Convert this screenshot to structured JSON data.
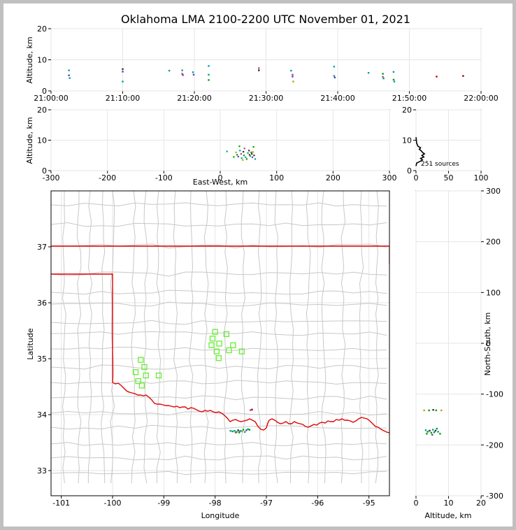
{
  "chart_data": {
    "type": "scatter",
    "title": "Oklahoma LMA 2100-2200 UTC November 01, 2021",
    "panels": {
      "time_altitude": {
        "ylabel": "Altitude, km",
        "ylim": [
          0,
          20
        ],
        "yticks": [
          "0",
          "10",
          "20"
        ],
        "xlim_minutes": [
          0,
          60
        ],
        "xticks": [
          "21:00:00",
          "21:10:00",
          "21:20:00",
          "21:30:00",
          "21:40:00",
          "21:50:00",
          "22:00:00"
        ],
        "points": [
          {
            "t": 2.5,
            "alt": 6.6,
            "c": "#00a0a0"
          },
          {
            "t": 2.5,
            "alt": 5.0,
            "c": "#6040c0"
          },
          {
            "t": 2.6,
            "alt": 4.1,
            "c": "#00a0a0"
          },
          {
            "t": 10.0,
            "alt": 7.0,
            "c": "#303030"
          },
          {
            "t": 10.0,
            "alt": 6.2,
            "c": "#6040c0"
          },
          {
            "t": 10.0,
            "alt": 3.0,
            "c": "#00a0a0"
          },
          {
            "t": 16.5,
            "alt": 6.5,
            "c": "#00a0a0"
          },
          {
            "t": 18.3,
            "alt": 6.6,
            "c": "#00a0a0"
          },
          {
            "t": 18.3,
            "alt": 5.5,
            "c": "#c04080"
          },
          {
            "t": 18.4,
            "alt": 5.1,
            "c": "#6040c0"
          },
          {
            "t": 19.8,
            "alt": 6.0,
            "c": "#00a0a0"
          },
          {
            "t": 19.9,
            "alt": 5.2,
            "c": "#6040c0"
          },
          {
            "t": 22.0,
            "alt": 8.0,
            "c": "#00a0a0"
          },
          {
            "t": 22.0,
            "alt": 5.2,
            "c": "#00a0a0"
          },
          {
            "t": 22.0,
            "alt": 3.5,
            "c": "#00a000"
          },
          {
            "t": 29.0,
            "alt": 7.3,
            "c": "#c04080"
          },
          {
            "t": 29.0,
            "alt": 6.6,
            "c": "#303030"
          },
          {
            "t": 33.5,
            "alt": 6.5,
            "c": "#00a0a0"
          },
          {
            "t": 33.7,
            "alt": 5.2,
            "c": "#c04080"
          },
          {
            "t": 33.7,
            "alt": 4.6,
            "c": "#6040c0"
          },
          {
            "t": 33.8,
            "alt": 3.0,
            "c": "#c0a000"
          },
          {
            "t": 39.5,
            "alt": 7.8,
            "c": "#00a0a0"
          },
          {
            "t": 39.5,
            "alt": 4.8,
            "c": "#00a0a0"
          },
          {
            "t": 39.6,
            "alt": 4.3,
            "c": "#6040c0"
          },
          {
            "t": 44.3,
            "alt": 5.8,
            "c": "#00a0a0"
          },
          {
            "t": 46.3,
            "alt": 5.5,
            "c": "#00a000"
          },
          {
            "t": 46.3,
            "alt": 4.5,
            "c": "#c04080"
          },
          {
            "t": 46.4,
            "alt": 4.0,
            "c": "#00a0a0"
          },
          {
            "t": 47.8,
            "alt": 6.1,
            "c": "#00a0a0"
          },
          {
            "t": 47.8,
            "alt": 3.6,
            "c": "#00a000"
          },
          {
            "t": 47.9,
            "alt": 3.0,
            "c": "#00a0a0"
          },
          {
            "t": 53.8,
            "alt": 4.6,
            "c": "#c00000"
          },
          {
            "t": 57.5,
            "alt": 4.8,
            "c": "#a00000"
          }
        ]
      },
      "ew_altitude": {
        "xlabel": "East-West, km",
        "ylabel": "Altitude, km",
        "xlim": [
          -300,
          300
        ],
        "ylim": [
          0,
          20
        ],
        "xticks": [
          "-300",
          "-200",
          "-100",
          "0",
          "100",
          "200",
          "300"
        ],
        "yticks": [
          "0",
          "10",
          "20"
        ],
        "points": [
          {
            "x": 12,
            "alt": 6.3,
            "c": "#00a0a0"
          },
          {
            "x": 24,
            "alt": 4.5,
            "c": "#00a000"
          },
          {
            "x": 28,
            "alt": 6.0,
            "c": "#c0a000"
          },
          {
            "x": 30,
            "alt": 5.2,
            "c": "#00a000"
          },
          {
            "x": 32,
            "alt": 4.6,
            "c": "#6040c0"
          },
          {
            "x": 34,
            "alt": 8.0,
            "c": "#00a000"
          },
          {
            "x": 35,
            "alt": 6.6,
            "c": "#00a0a0"
          },
          {
            "x": 37,
            "alt": 5.5,
            "c": "#c04080"
          },
          {
            "x": 38,
            "alt": 4.1,
            "c": "#00a0a0"
          },
          {
            "x": 40,
            "alt": 3.5,
            "c": "#c0a000"
          },
          {
            "x": 41,
            "alt": 6.2,
            "c": "#303030"
          },
          {
            "x": 42,
            "alt": 5.0,
            "c": "#00a000"
          },
          {
            "x": 43,
            "alt": 7.3,
            "c": "#c04080"
          },
          {
            "x": 45,
            "alt": 4.4,
            "c": "#00a0a0"
          },
          {
            "x": 47,
            "alt": 3.8,
            "c": "#00a000"
          },
          {
            "x": 49,
            "alt": 5.8,
            "c": "#00a0a0"
          },
          {
            "x": 51,
            "alt": 6.6,
            "c": "#303030"
          },
          {
            "x": 52,
            "alt": 5.2,
            "c": "#c00000"
          },
          {
            "x": 53,
            "alt": 4.8,
            "c": "#00a0a0"
          },
          {
            "x": 55,
            "alt": 6.0,
            "c": "#00a000"
          },
          {
            "x": 56,
            "alt": 5.5,
            "c": "#303030"
          },
          {
            "x": 57,
            "alt": 4.4,
            "c": "#6040c0"
          },
          {
            "x": 58,
            "alt": 6.1,
            "c": "#c0a000"
          },
          {
            "x": 59,
            "alt": 7.8,
            "c": "#00a000"
          },
          {
            "x": 60,
            "alt": 5.0,
            "c": "#303030"
          },
          {
            "x": 62,
            "alt": 3.8,
            "c": "#00a0a0"
          }
        ]
      },
      "altitude_histogram": {
        "xlim": [
          0,
          100
        ],
        "ylim": [
          0,
          20
        ],
        "xticks": [
          "0",
          "50",
          "100"
        ],
        "yticks": [
          "0",
          "10",
          "20"
        ],
        "annotation": "251 sources",
        "profile": [
          {
            "alt": 1.5,
            "n": 0
          },
          {
            "alt": 2.5,
            "n": 1
          },
          {
            "alt": 3.0,
            "n": 6
          },
          {
            "alt": 3.5,
            "n": 10
          },
          {
            "alt": 4.0,
            "n": 7
          },
          {
            "alt": 4.5,
            "n": 12
          },
          {
            "alt": 5.0,
            "n": 9
          },
          {
            "alt": 5.5,
            "n": 13
          },
          {
            "alt": 6.0,
            "n": 10
          },
          {
            "alt": 6.5,
            "n": 8
          },
          {
            "alt": 7.0,
            "n": 5
          },
          {
            "alt": 7.5,
            "n": 7
          },
          {
            "alt": 8.0,
            "n": 3
          },
          {
            "alt": 8.5,
            "n": 2
          },
          {
            "alt": 9.0,
            "n": 1
          },
          {
            "alt": 11.0,
            "n": 0
          }
        ]
      },
      "plan_view": {
        "xlabel": "Longitude",
        "ylabel": "Latitude",
        "xlim": [
          -101.2,
          -94.6
        ],
        "ylim": [
          32.55,
          38.0
        ],
        "xticks": [
          "-101",
          "-100",
          "-99",
          "-98",
          "-97",
          "-96",
          "-95"
        ],
        "xtick_values": [
          -101,
          -100,
          -99,
          -98,
          -97,
          -96,
          -95
        ],
        "yticks": [
          "33",
          "34",
          "35",
          "36",
          "37"
        ],
        "ytick_values": [
          33,
          34,
          35,
          36,
          37
        ],
        "right_ylabel": "North-South, km",
        "right_ylim": [
          -300,
          300
        ],
        "right_yticks": [
          "-300",
          "-200",
          "-100",
          "0",
          "100",
          "200",
          "300"
        ],
        "stations": [
          {
            "lon": -99.45,
            "lat": 34.98
          },
          {
            "lon": -99.38,
            "lat": 34.85
          },
          {
            "lon": -99.55,
            "lat": 34.76
          },
          {
            "lon": -99.35,
            "lat": 34.7
          },
          {
            "lon": -99.5,
            "lat": 34.6
          },
          {
            "lon": -99.43,
            "lat": 34.52
          },
          {
            "lon": -99.1,
            "lat": 34.7
          },
          {
            "lon": -98.0,
            "lat": 35.48
          },
          {
            "lon": -98.05,
            "lat": 35.36
          },
          {
            "lon": -98.07,
            "lat": 35.24
          },
          {
            "lon": -97.92,
            "lat": 35.27
          },
          {
            "lon": -97.97,
            "lat": 35.13
          },
          {
            "lon": -97.93,
            "lat": 35.01
          },
          {
            "lon": -97.78,
            "lat": 35.44
          },
          {
            "lon": -97.73,
            "lat": 35.15
          },
          {
            "lon": -97.65,
            "lat": 35.24
          },
          {
            "lon": -97.48,
            "lat": 35.13
          }
        ],
        "sources": [
          {
            "lon": -97.28,
            "lat": 34.09,
            "c": "#c00000"
          },
          {
            "lon": -97.31,
            "lat": 34.08,
            "c": "#c04080"
          },
          {
            "lon": -97.7,
            "lat": 33.71,
            "c": "#00a0a0"
          },
          {
            "lon": -97.66,
            "lat": 33.7,
            "c": "#00a000"
          },
          {
            "lon": -97.62,
            "lat": 33.71,
            "c": "#00a0a0"
          },
          {
            "lon": -97.58,
            "lat": 33.69,
            "c": "#00a000"
          },
          {
            "lon": -97.55,
            "lat": 33.72,
            "c": "#303030"
          },
          {
            "lon": -97.53,
            "lat": 33.68,
            "c": "#00a000"
          },
          {
            "lon": -97.5,
            "lat": 33.71,
            "c": "#00a0a0"
          },
          {
            "lon": -97.47,
            "lat": 33.7,
            "c": "#c0a000"
          },
          {
            "lon": -97.45,
            "lat": 33.73,
            "c": "#00a000"
          },
          {
            "lon": -97.42,
            "lat": 33.69,
            "c": "#00a0a0"
          },
          {
            "lon": -97.39,
            "lat": 33.72,
            "c": "#6040c0"
          },
          {
            "lon": -97.36,
            "lat": 33.74,
            "c": "#00a0a0"
          },
          {
            "lon": -97.33,
            "lat": 33.73,
            "c": "#00a000"
          },
          {
            "lon": -97.6,
            "lat": 33.68,
            "c": "#c04080"
          },
          {
            "lon": -97.52,
            "lat": 33.7,
            "c": "#00a0a0"
          }
        ]
      },
      "altitude_ns": {
        "xlabel": "Altitude, km",
        "xlim": [
          0,
          20
        ],
        "xticks": [
          "0",
          "10",
          "20"
        ],
        "ylim": [
          -300,
          300
        ],
        "points": [
          {
            "alt": 2.5,
            "ns": -132,
            "c": "#c0a000"
          },
          {
            "alt": 4.0,
            "ns": -132,
            "c": "#00a000"
          },
          {
            "alt": 5.3,
            "ns": -131,
            "c": "#303030"
          },
          {
            "alt": 6.2,
            "ns": -132,
            "c": "#00a000"
          },
          {
            "alt": 7.8,
            "ns": -132,
            "c": "#c0a000"
          },
          {
            "alt": 3.0,
            "ns": -171,
            "c": "#00a0a0"
          },
          {
            "alt": 3.6,
            "ns": -174,
            "c": "#00a000"
          },
          {
            "alt": 4.2,
            "ns": -172,
            "c": "#303030"
          },
          {
            "alt": 4.7,
            "ns": -176,
            "c": "#00a000"
          },
          {
            "alt": 5.2,
            "ns": -170,
            "c": "#00a0a0"
          },
          {
            "alt": 5.6,
            "ns": -175,
            "c": "#00a000"
          },
          {
            "alt": 6.0,
            "ns": -172,
            "c": "#303030"
          },
          {
            "alt": 6.4,
            "ns": -168,
            "c": "#00a000"
          },
          {
            "alt": 6.8,
            "ns": -174,
            "c": "#00a0a0"
          },
          {
            "alt": 7.4,
            "ns": -178,
            "c": "#00a000"
          },
          {
            "alt": 5.0,
            "ns": -180,
            "c": "#6040c0"
          },
          {
            "alt": 3.3,
            "ns": -178,
            "c": "#00a000"
          }
        ]
      }
    }
  }
}
